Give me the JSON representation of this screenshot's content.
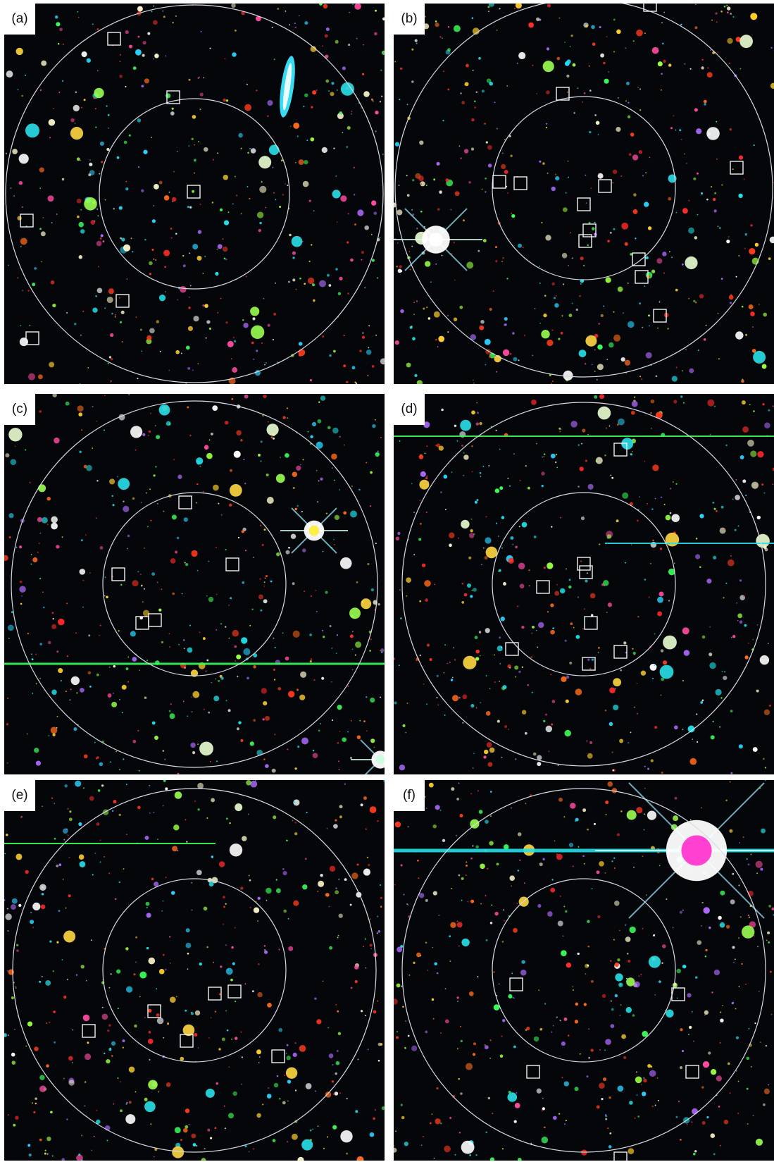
{
  "colors": {
    "background": "#04060a",
    "circle": "#d8dce4",
    "marker_box": "#f2f2f2",
    "label_bg": "#ffffff",
    "source_palette": [
      "#ff3a1e",
      "#ff2a2a",
      "#ff6a1a",
      "#22e0e8",
      "#2ad4ff",
      "#ffffff",
      "#f7f2c8",
      "#3aff5a",
      "#9aff40",
      "#ffd02a",
      "#b06aff",
      "#ff4aa0"
    ]
  },
  "panels": [
    {
      "label": "(a)",
      "marked_sources": 7,
      "notable_features": [
        "elongated cyan galaxy"
      ]
    },
    {
      "label": "(b)",
      "marked_sources": 13,
      "notable_features": [
        "bright star with diffraction spikes"
      ]
    },
    {
      "label": "(c)",
      "marked_sources": 5,
      "notable_features": [
        "green satellite trail",
        "bright yellow star"
      ]
    },
    {
      "label": "(d)",
      "marked_sources": 9,
      "notable_features": [
        "green satellite trails"
      ]
    },
    {
      "label": "(e)",
      "marked_sources": 7,
      "notable_features": [
        "green satellite trail"
      ]
    },
    {
      "label": "(f)",
      "marked_sources": 5,
      "notable_features": [
        "cyan satellite trail",
        "saturated star with magenta core"
      ]
    }
  ]
}
